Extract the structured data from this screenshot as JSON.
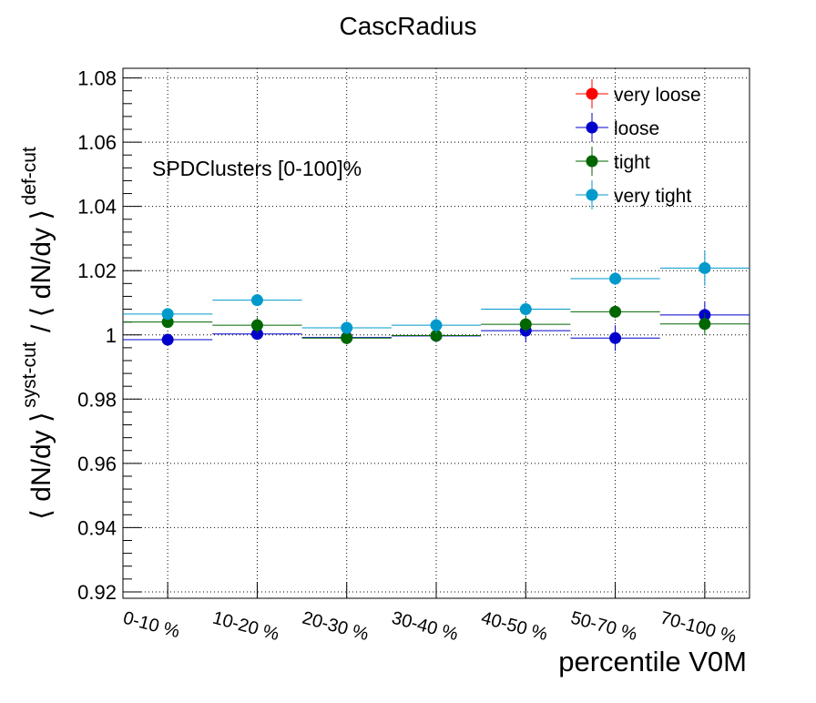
{
  "chart_data": {
    "type": "scatter",
    "title": "CascRadius",
    "annotation": "SPDClusters [0-100]%",
    "xlabel": "percentile V0M",
    "ylabel": {
      "main": "⟨ dN/dy ⟩",
      "sup1": "syst-cut",
      "slash": "/ ⟨ dN/dy ⟩",
      "sup2": "def-cut"
    },
    "categories": [
      "0-10 %",
      "10-20 %",
      "20-30 %",
      "30-40 %",
      "40-50 %",
      "50-70 %",
      "70-100 %"
    ],
    "ylim": [
      0.918,
      1.083
    ],
    "yticks": [
      0.92,
      0.94,
      0.96,
      0.98,
      1,
      1.02,
      1.04,
      1.06,
      1.08
    ],
    "ytick_labels": [
      "0.92",
      "0.94",
      "0.96",
      "0.98",
      "1",
      "1.02",
      "1.04",
      "1.06",
      "1.08"
    ],
    "grid": true,
    "legend_position": "top-right",
    "series": [
      {
        "name": "very loose",
        "color": "#ff0000",
        "values": [
          null,
          null,
          null,
          null,
          null,
          null,
          null
        ],
        "errors": [
          0,
          0,
          0,
          0,
          0,
          0,
          0
        ]
      },
      {
        "name": "loose",
        "color": "#0000cc",
        "values": [
          0.9985,
          1.0003,
          0.9992,
          0.9997,
          1.0013,
          0.999,
          1.0062
        ],
        "errors": [
          0.0012,
          0.0015,
          0.002,
          0.0018,
          0.0035,
          0.004,
          0.004
        ]
      },
      {
        "name": "tight",
        "color": "#006600",
        "values": [
          1.004,
          1.003,
          0.999,
          0.9998,
          1.0033,
          1.0072,
          1.0034
        ],
        "errors": [
          0.0015,
          0.0025,
          0.002,
          0.0022,
          0.0025,
          0.002,
          0.0035
        ]
      },
      {
        "name": "very tight",
        "color": "#0099cc",
        "values": [
          1.0065,
          1.0108,
          1.0022,
          1.003,
          1.008,
          1.0175,
          1.0208
        ],
        "errors": [
          0.0015,
          0.0015,
          0.002,
          0.0025,
          0.002,
          0.002,
          0.0055
        ]
      }
    ]
  }
}
